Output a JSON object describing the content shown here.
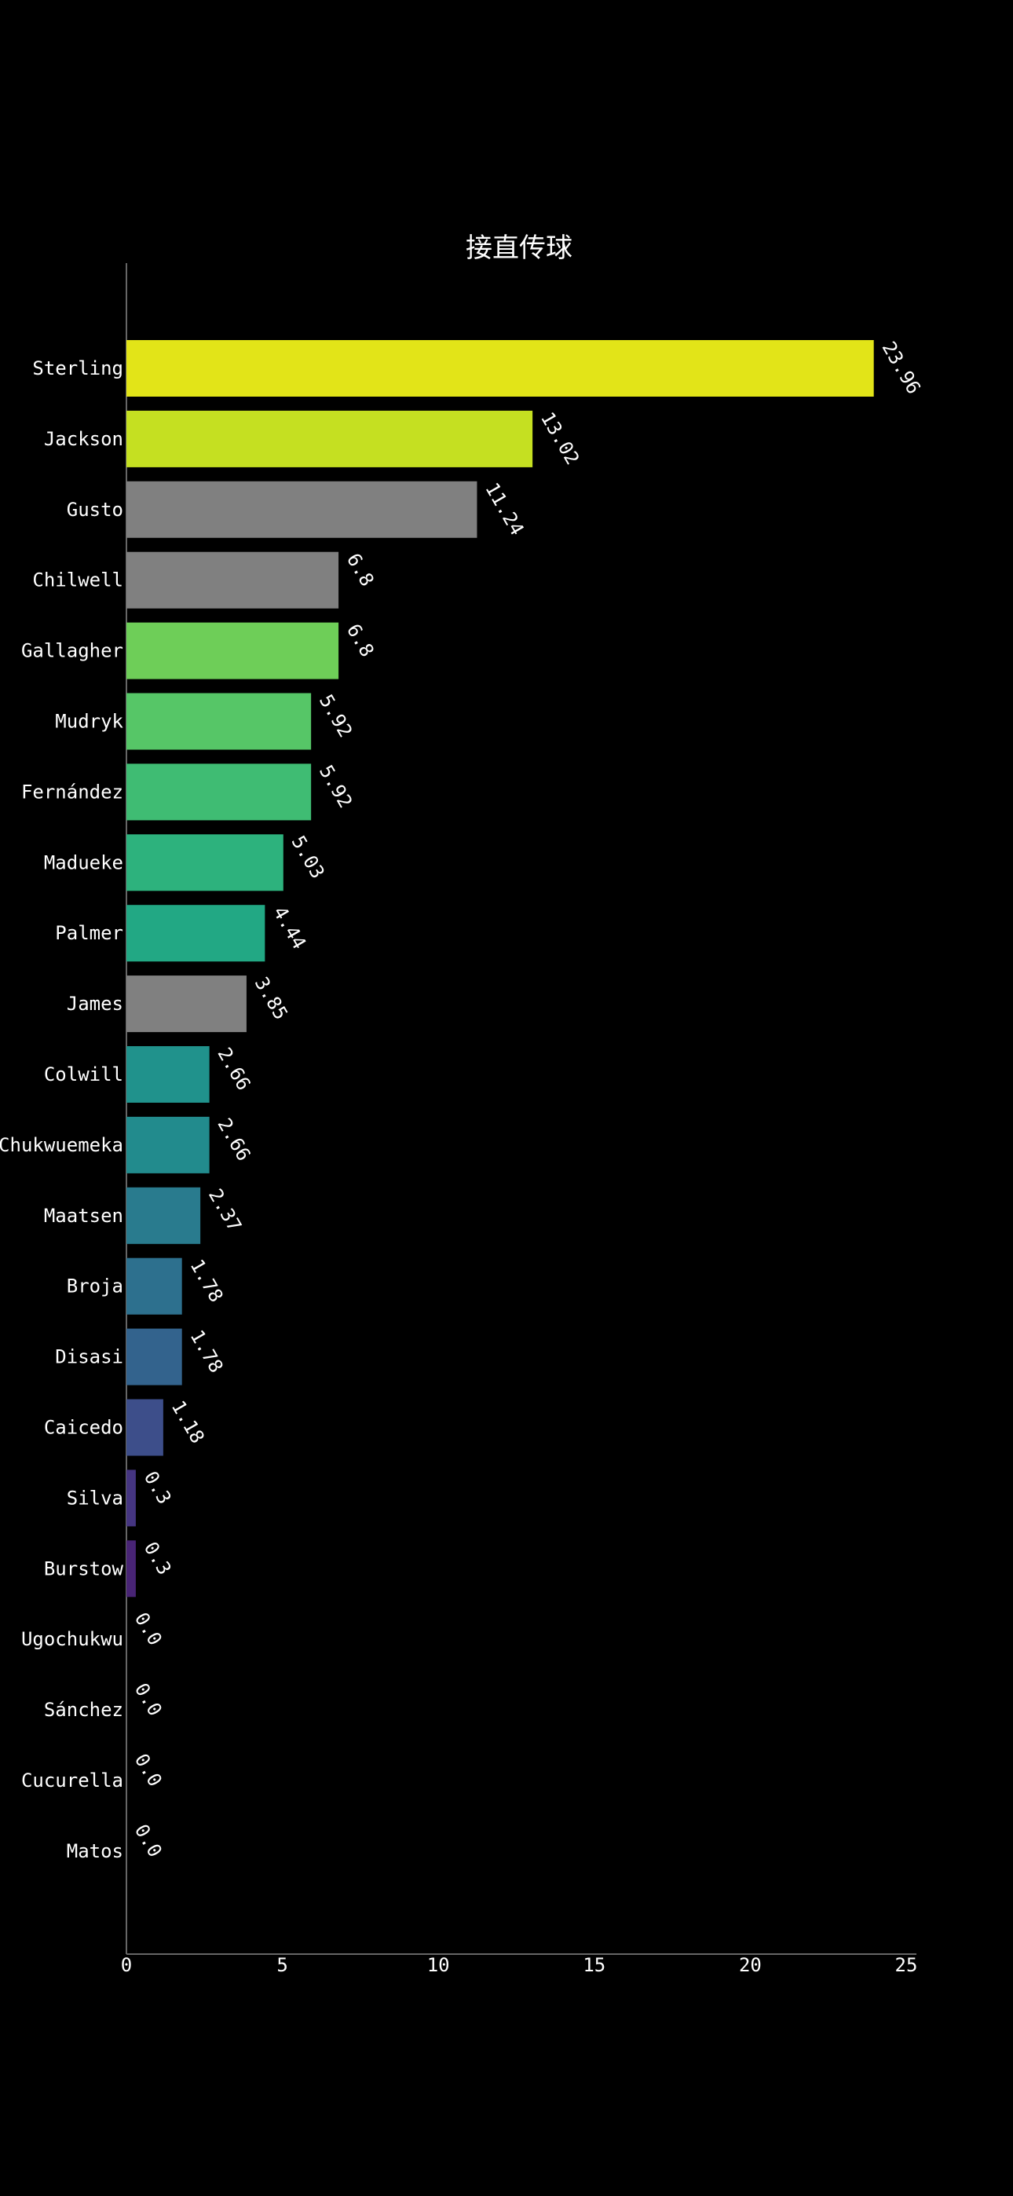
{
  "chart_data": {
    "type": "bar",
    "orientation": "horizontal",
    "title": "接直传球",
    "xlabel": "",
    "ylabel": "",
    "xlim": [
      0,
      25
    ],
    "x_ticks": [
      0,
      5,
      10,
      15,
      20,
      25
    ],
    "x_tick_labels": [
      "0",
      "5",
      "10",
      "15",
      "20",
      "25"
    ],
    "grid": false,
    "categories": [
      "Sterling",
      "Jackson",
      "Gusto",
      "Chilwell",
      "Gallagher",
      "Mudryk",
      "Fernández",
      "Madueke",
      "Palmer",
      "James",
      "Colwill",
      "Chukwuemeka",
      "Maatsen",
      "Broja",
      "Disasi",
      "Caicedo",
      "Silva",
      "Burstow",
      "Ugochukwu",
      "Sánchez",
      "Cucurella",
      "Matos"
    ],
    "values": [
      23.96,
      13.02,
      11.24,
      6.8,
      6.8,
      5.92,
      5.92,
      5.03,
      4.44,
      3.85,
      2.66,
      2.66,
      2.37,
      1.78,
      1.78,
      1.18,
      0.3,
      0.3,
      0.0,
      0.0,
      0.0,
      0.0
    ],
    "value_labels": [
      "23.96",
      "13.02",
      "11.24",
      "6.8",
      "6.8",
      "5.92",
      "5.92",
      "5.03",
      "4.44",
      "3.85",
      "2.66",
      "2.66",
      "2.37",
      "1.78",
      "1.78",
      "1.18",
      "0.3",
      "0.3",
      "0.0",
      "0.0",
      "0.0",
      "0.0"
    ],
    "colors": [
      "#e2e418",
      "#c5e021",
      "#808080",
      "#808080",
      "#6ece58",
      "#56c667",
      "#3fbc73",
      "#2db27d",
      "#22a884",
      "#808080",
      "#20928c",
      "#228b8d",
      "#297b8e",
      "#2d708e",
      "#33638d",
      "#3d4e8a",
      "#453581",
      "#482475",
      "#481467",
      "#440154",
      "#440154",
      "#440154"
    ]
  }
}
